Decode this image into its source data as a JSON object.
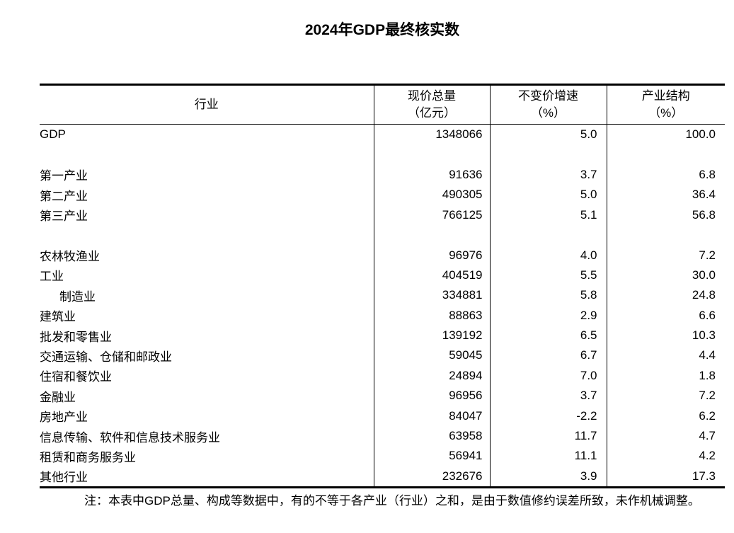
{
  "title": "2024年GDP最终核实数",
  "table": {
    "columns": [
      {
        "label": "行业",
        "unit": ""
      },
      {
        "label": "现价总量",
        "unit": "（亿元）"
      },
      {
        "label": "不变价增速",
        "unit": "（%）"
      },
      {
        "label": "产业结构",
        "unit": "（%）"
      }
    ],
    "rows": [
      {
        "name": "GDP",
        "value": "1348066",
        "growth": "5.0",
        "share": "100.0",
        "indent": false,
        "blank": false
      },
      {
        "name": "",
        "value": "",
        "growth": "",
        "share": "",
        "indent": false,
        "blank": true
      },
      {
        "name": "第一产业",
        "value": "91636",
        "growth": "3.7",
        "share": "6.8",
        "indent": false,
        "blank": false
      },
      {
        "name": "第二产业",
        "value": "490305",
        "growth": "5.0",
        "share": "36.4",
        "indent": false,
        "blank": false
      },
      {
        "name": "第三产业",
        "value": "766125",
        "growth": "5.1",
        "share": "56.8",
        "indent": false,
        "blank": false
      },
      {
        "name": "",
        "value": "",
        "growth": "",
        "share": "",
        "indent": false,
        "blank": true
      },
      {
        "name": "农林牧渔业",
        "value": "96976",
        "growth": "4.0",
        "share": "7.2",
        "indent": false,
        "blank": false
      },
      {
        "name": "工业",
        "value": "404519",
        "growth": "5.5",
        "share": "30.0",
        "indent": false,
        "blank": false
      },
      {
        "name": "制造业",
        "value": "334881",
        "growth": "5.8",
        "share": "24.8",
        "indent": true,
        "blank": false
      },
      {
        "name": "建筑业",
        "value": "88863",
        "growth": "2.9",
        "share": "6.6",
        "indent": false,
        "blank": false
      },
      {
        "name": "批发和零售业",
        "value": "139192",
        "growth": "6.5",
        "share": "10.3",
        "indent": false,
        "blank": false
      },
      {
        "name": "交通运输、仓储和邮政业",
        "value": "59045",
        "growth": "6.7",
        "share": "4.4",
        "indent": false,
        "blank": false
      },
      {
        "name": "住宿和餐饮业",
        "value": "24894",
        "growth": "7.0",
        "share": "1.8",
        "indent": false,
        "blank": false
      },
      {
        "name": "金融业",
        "value": "96956",
        "growth": "3.7",
        "share": "7.2",
        "indent": false,
        "blank": false
      },
      {
        "name": "房地产业",
        "value": "84047",
        "growth": "-2.2",
        "share": "6.2",
        "indent": false,
        "blank": false
      },
      {
        "name": "信息传输、软件和信息技术服务业",
        "value": "63958",
        "growth": "11.7",
        "share": "4.7",
        "indent": false,
        "blank": false
      },
      {
        "name": "租赁和商务服务业",
        "value": "56941",
        "growth": "11.1",
        "share": "4.2",
        "indent": false,
        "blank": false
      },
      {
        "name": "其他行业",
        "value": "232676",
        "growth": "3.9",
        "share": "17.3",
        "indent": false,
        "blank": false
      }
    ]
  },
  "note": "注：本表中GDP总量、构成等数据中，有的不等于各产业（行业）之和，是由于数值修约误差所致，未作机械调整。",
  "chart_data": {
    "type": "table",
    "title": "2024年GDP最终核实数",
    "columns": [
      "行业",
      "现价总量（亿元）",
      "不变价增速（%）",
      "产业结构（%）"
    ],
    "rows": [
      [
        "GDP",
        1348066,
        5.0,
        100.0
      ],
      [
        "第一产业",
        91636,
        3.7,
        6.8
      ],
      [
        "第二产业",
        490305,
        5.0,
        36.4
      ],
      [
        "第三产业",
        766125,
        5.1,
        56.8
      ],
      [
        "农林牧渔业",
        96976,
        4.0,
        7.2
      ],
      [
        "工业",
        404519,
        5.5,
        30.0
      ],
      [
        "制造业",
        334881,
        5.8,
        24.8
      ],
      [
        "建筑业",
        88863,
        2.9,
        6.6
      ],
      [
        "批发和零售业",
        139192,
        6.5,
        10.3
      ],
      [
        "交通运输、仓储和邮政业",
        59045,
        6.7,
        4.4
      ],
      [
        "住宿和餐饮业",
        24894,
        7.0,
        1.8
      ],
      [
        "金融业",
        96956,
        3.7,
        7.2
      ],
      [
        "房地产业",
        84047,
        -2.2,
        6.2
      ],
      [
        "信息传输、软件和信息技术服务业",
        63958,
        11.7,
        4.7
      ],
      [
        "租赁和商务服务业",
        56941,
        11.1,
        4.2
      ],
      [
        "其他行业",
        232676,
        3.9,
        17.3
      ]
    ]
  }
}
